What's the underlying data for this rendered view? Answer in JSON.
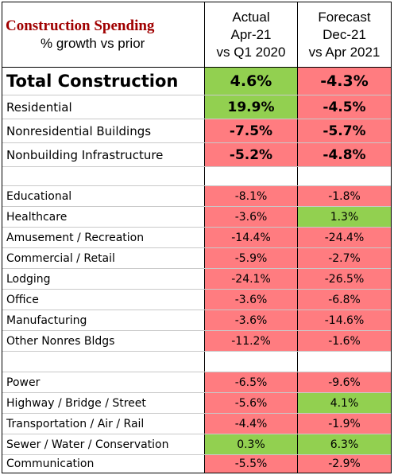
{
  "header": {
    "title": "Construction Spending",
    "subtitle": "% growth vs prior",
    "col1": [
      "Actual",
      "Apr-21",
      "vs Q1 2020"
    ],
    "col2": [
      "Forecast",
      "Dec-21",
      "vs Apr 2021"
    ]
  },
  "summary": [
    {
      "label": "Total Construction",
      "actual": "4.6%",
      "forecast": "-4.3%",
      "actual_color": "green",
      "forecast_color": "red"
    },
    {
      "label": "Residential",
      "actual": "19.9%",
      "forecast": "-4.5%",
      "actual_color": "green",
      "forecast_color": "red"
    },
    {
      "label": "Nonresidential Buildings",
      "actual": "-7.5%",
      "forecast": "-5.7%",
      "actual_color": "red",
      "forecast_color": "red"
    },
    {
      "label": "Nonbuilding Infrastructure",
      "actual": "-5.2%",
      "forecast": "-4.8%",
      "actual_color": "red",
      "forecast_color": "red"
    }
  ],
  "buildings": [
    {
      "label": "Educational",
      "actual": "-8.1%",
      "forecast": "-1.8%",
      "actual_color": "red",
      "forecast_color": "red"
    },
    {
      "label": "Healthcare",
      "actual": "-3.6%",
      "forecast": "1.3%",
      "actual_color": "red",
      "forecast_color": "green"
    },
    {
      "label": "Amusement / Recreation",
      "actual": "-14.4%",
      "forecast": "-24.4%",
      "actual_color": "red",
      "forecast_color": "red"
    },
    {
      "label": "Commercial / Retail",
      "actual": "-5.9%",
      "forecast": "-2.7%",
      "actual_color": "red",
      "forecast_color": "red"
    },
    {
      "label": "Lodging",
      "actual": "-24.1%",
      "forecast": "-26.5%",
      "actual_color": "red",
      "forecast_color": "red"
    },
    {
      "label": "Office",
      "actual": "-3.6%",
      "forecast": "-6.8%",
      "actual_color": "red",
      "forecast_color": "red"
    },
    {
      "label": "Manufacturing",
      "actual": "-3.6%",
      "forecast": "-14.6%",
      "actual_color": "red",
      "forecast_color": "red"
    },
    {
      "label": "Other Nonres Bldgs",
      "actual": "-11.2%",
      "forecast": "-1.6%",
      "actual_color": "red",
      "forecast_color": "red"
    }
  ],
  "infrastructure": [
    {
      "label": "Power",
      "actual": "-6.5%",
      "forecast": "-9.6%",
      "actual_color": "red",
      "forecast_color": "red"
    },
    {
      "label": "Highway / Bridge / Street",
      "actual": "-5.6%",
      "forecast": "4.1%",
      "actual_color": "red",
      "forecast_color": "green"
    },
    {
      "label": "Transportation / Air / Rail",
      "actual": "-4.4%",
      "forecast": "-1.9%",
      "actual_color": "red",
      "forecast_color": "red"
    },
    {
      "label": "Sewer / Water / Conservation",
      "actual": "0.3%",
      "forecast": "6.3%",
      "actual_color": "green",
      "forecast_color": "green"
    },
    {
      "label": "Communication",
      "actual": "-5.5%",
      "forecast": "-2.9%",
      "actual_color": "red",
      "forecast_color": "red"
    }
  ]
}
